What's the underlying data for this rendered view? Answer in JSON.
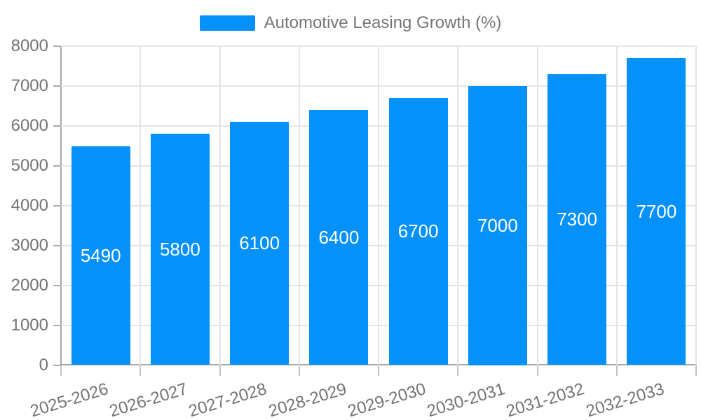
{
  "colors": {
    "bar": "#0591fa",
    "bar_label_text": "#ffffff",
    "axis_line": "#a6a6a6",
    "grid_line": "#e4e4e4",
    "tick_text": "#737373",
    "legend_text": "#757575",
    "background": "#ffffff"
  },
  "legend": {
    "items": [
      {
        "label": "Automotive Leasing Growth (%)",
        "color": "#0591fa"
      }
    ]
  },
  "chart_data": {
    "type": "bar",
    "title": "Automotive Leasing Growth (%)",
    "categories": [
      "2025-2026",
      "2026-2027",
      "2027-2028",
      "2028-2029",
      "2029-2030",
      "2030-2031",
      "2031-2032",
      "2032-2033"
    ],
    "series": [
      {
        "name": "Automotive Leasing Growth (%)",
        "values": [
          5490,
          5800,
          6100,
          6400,
          6700,
          7000,
          7300,
          7700
        ]
      }
    ],
    "bar_value_labels": [
      "5490",
      "5800",
      "6100",
      "6400",
      "6700",
      "7000",
      "7300",
      "7700"
    ],
    "xlabel": "",
    "ylabel": "",
    "ylim": [
      0,
      8000
    ],
    "yticks": [
      0,
      1000,
      2000,
      3000,
      4000,
      5000,
      6000,
      7000,
      8000
    ],
    "grid": "horizontal and vertical gridlines on",
    "legend_position": "top-center",
    "value_label_position": "center of bar, white text",
    "xtick_rotation_deg": -17
  }
}
